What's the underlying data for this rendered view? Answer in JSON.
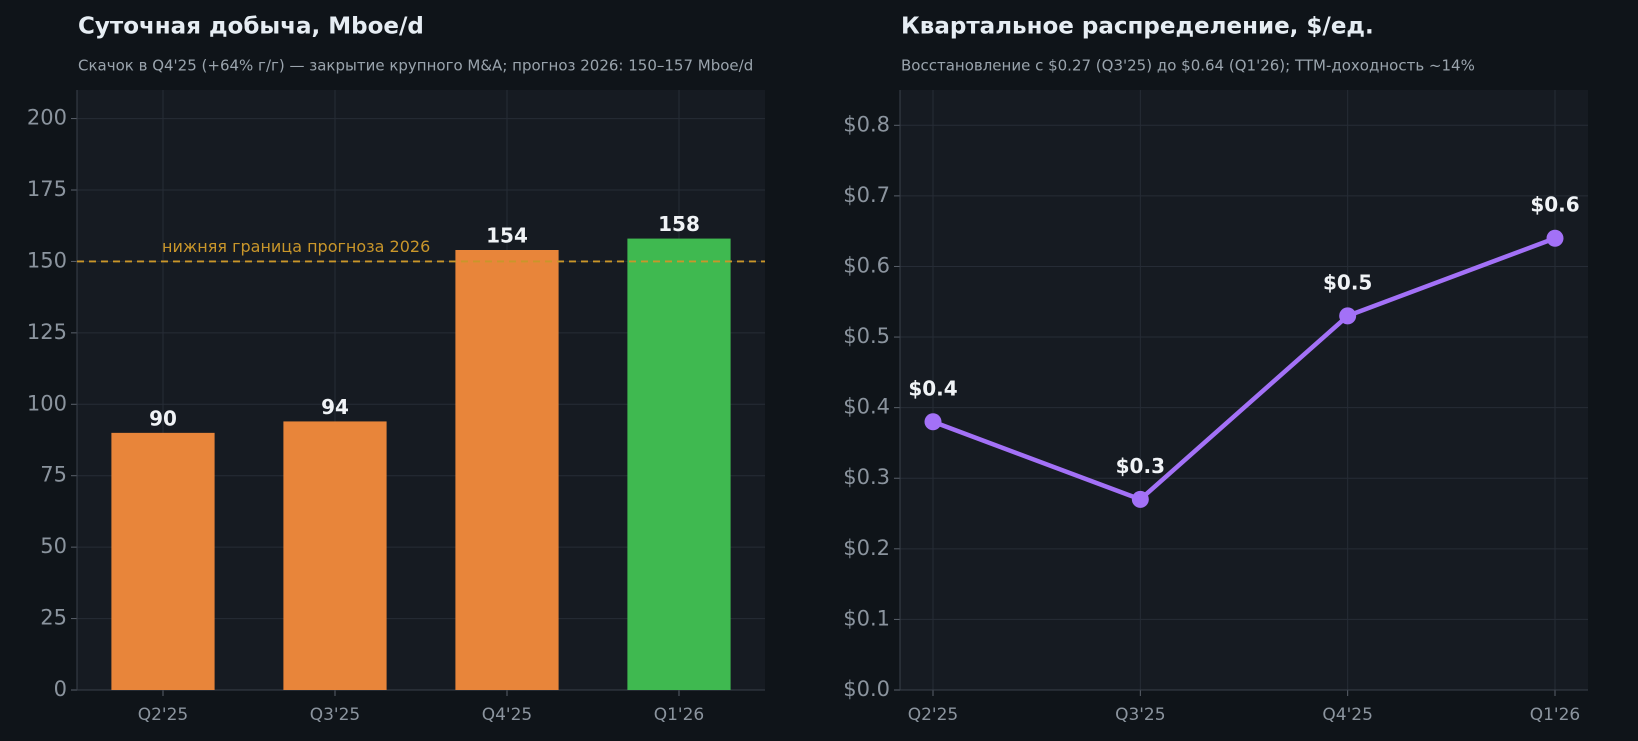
{
  "chart_data": [
    {
      "type": "bar",
      "title": "Суточная добыча, Mboe/d",
      "subtitle": "Скачок в Q4'25 (+64% г/г) — закрытие крупного M&A; прогноз 2026: 150–157 Mboe/d",
      "categories": [
        "Q2'25",
        "Q3'25",
        "Q4'25",
        "Q1'26"
      ],
      "values": [
        90,
        94,
        154,
        158
      ],
      "colors": [
        "#e8853a",
        "#e8853a",
        "#e8853a",
        "#3fb950"
      ],
      "ylim": [
        0,
        210
      ],
      "yticks": [
        0,
        25,
        50,
        75,
        100,
        125,
        150,
        175,
        200
      ],
      "grid": true,
      "reference_line": {
        "value": 150,
        "label": "нижняя граница прогноза 2026",
        "color": "#c9962a"
      }
    },
    {
      "type": "line",
      "title": "Квартальное распределение, $/ед.",
      "subtitle": "Восстановление с $0.27 (Q3'25) до $0.64 (Q1'26); TTM-доходность ~14%",
      "categories": [
        "Q2'25",
        "Q3'25",
        "Q4'25",
        "Q1'26"
      ],
      "values": [
        0.38,
        0.27,
        0.53,
        0.64
      ],
      "value_labels": [
        "$0.4",
        "$0.3",
        "$0.5",
        "$0.6"
      ],
      "color": "#a371f7",
      "ylim": [
        0,
        0.85
      ],
      "yticks": [
        {
          "value": 0,
          "label": "$0.0"
        },
        {
          "value": 0.1,
          "label": "$0.1"
        },
        {
          "value": 0.2,
          "label": "$0.2"
        },
        {
          "value": 0.3,
          "label": "$0.3"
        },
        {
          "value": 0.4,
          "label": "$0.4"
        },
        {
          "value": 0.5,
          "label": "$0.5"
        },
        {
          "value": 0.6,
          "label": "$0.6"
        },
        {
          "value": 0.7,
          "label": "$0.7"
        },
        {
          "value": 0.8,
          "label": "$0.8"
        }
      ],
      "grid": true
    }
  ]
}
